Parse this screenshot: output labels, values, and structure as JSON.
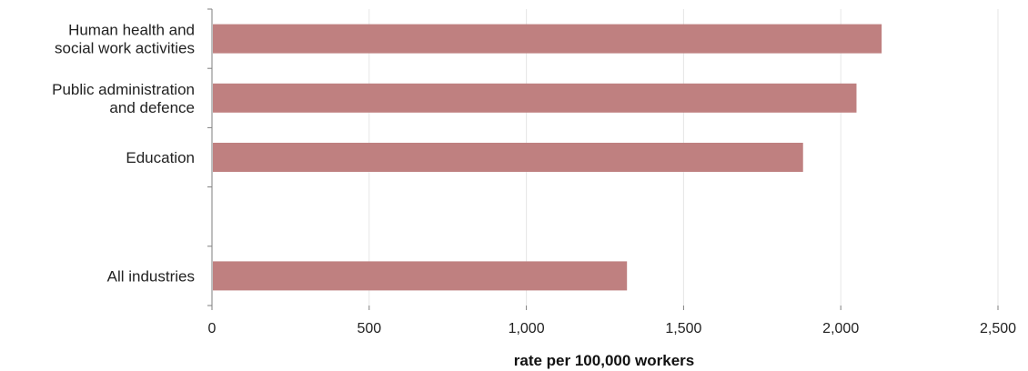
{
  "chart_data": {
    "type": "bar",
    "orientation": "horizontal",
    "categories": [
      [
        "Human health and",
        "social work activities"
      ],
      [
        "Public administration",
        "and defence"
      ],
      [
        "Education"
      ],
      [],
      [
        "All industries"
      ]
    ],
    "values": [
      2130,
      2050,
      1880,
      null,
      1320
    ],
    "xlabel": "rate per 100,000 workers",
    "ylabel": "",
    "xlim": [
      0,
      2500
    ],
    "xticks": [
      0,
      500,
      1000,
      1500,
      2000,
      2500
    ],
    "xtick_labels": [
      "0",
      "500",
      "1,000",
      "1,500",
      "2,000",
      "2,500"
    ],
    "grid": "vertical",
    "bar_color": "#bf8080",
    "grid_color": "#e6e6e6",
    "axis_color": "#7f7f7f"
  }
}
